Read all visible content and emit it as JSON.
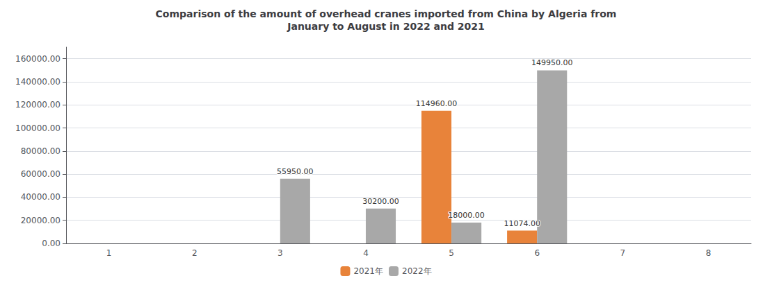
{
  "chart_data": {
    "type": "bar",
    "title": "Comparison of the amount of overhead cranes imported from China by Algeria from\nJanuary to August in 2022 and 2021",
    "categories": [
      "1",
      "2",
      "3",
      "4",
      "5",
      "6",
      "7",
      "8"
    ],
    "series": [
      {
        "name": "2021年",
        "color": "#E8833A",
        "values": [
          0,
          0,
          0,
          0,
          114960.0,
          11074.0,
          0,
          0
        ],
        "value_labels": [
          null,
          null,
          null,
          null,
          "114960.00",
          "11074.00",
          null,
          null
        ]
      },
      {
        "name": "2022年",
        "color": "#A8A8A8",
        "values": [
          0,
          0,
          55950.0,
          30200.0,
          18000.0,
          149950.0,
          0,
          0
        ],
        "value_labels": [
          null,
          null,
          "55950.00",
          "30200.00",
          "18000.00",
          "149950.00",
          null,
          null
        ]
      }
    ],
    "ylim": [
      0,
      170000
    ],
    "yticks": [
      {
        "value": 0,
        "label": "0.00"
      },
      {
        "value": 20000,
        "label": "20000.00"
      },
      {
        "value": 40000,
        "label": "40000.00"
      },
      {
        "value": 60000,
        "label": "60000.00"
      },
      {
        "value": 80000,
        "label": "80000.00"
      },
      {
        "value": 100000,
        "label": "100000.00"
      },
      {
        "value": 120000,
        "label": "120000.00"
      },
      {
        "value": 140000,
        "label": "140000.00"
      },
      {
        "value": 160000,
        "label": "160000.00"
      }
    ],
    "grid": true,
    "legend": "bottom",
    "data_labels": true
  }
}
